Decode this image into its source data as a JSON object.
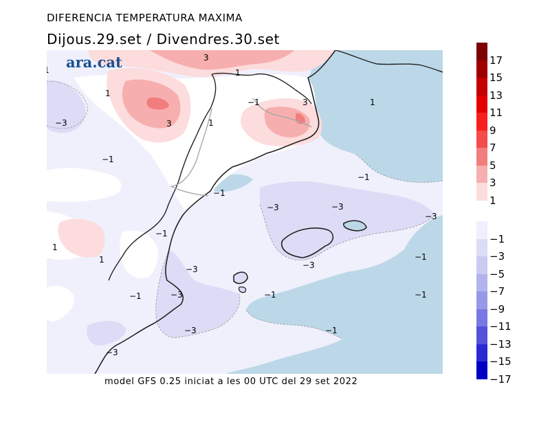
{
  "header": {
    "title": "DIFERENCIA TEMPERATURA MAXIMA",
    "subtitle": "Dijous.29.set / Divendres.30.set"
  },
  "logo_text": "ara.cat",
  "footer": "model GFS 0.25 iniciat a les 00 UTC del 29 set 2022",
  "colors": {
    "neg1": "#eff0fc",
    "neg3": "#dcdcf6",
    "neg5": "#cbcaf2",
    "pos1": "#fcdcdc",
    "pos3": "#f7aeae",
    "pos5": "#f27d7d",
    "sea_blue": "#bcd8e8",
    "coast": "#222222",
    "border": "#a8a8a8"
  },
  "map_labels": [
    {
      "id": "l1",
      "text": "1"
    },
    {
      "id": "l2",
      "text": "1"
    },
    {
      "id": "l3",
      "text": "3"
    },
    {
      "id": "l4",
      "text": "3"
    },
    {
      "id": "l5",
      "text": "1"
    },
    {
      "id": "l6",
      "text": "−1"
    },
    {
      "id": "l7",
      "text": "3"
    },
    {
      "id": "l8",
      "text": "1"
    },
    {
      "id": "l9",
      "text": "1"
    },
    {
      "id": "l10",
      "text": "−3"
    },
    {
      "id": "l11",
      "text": "−1"
    },
    {
      "id": "l12",
      "text": "−1"
    },
    {
      "id": "l13",
      "text": "−1"
    },
    {
      "id": "l14",
      "text": "−3"
    },
    {
      "id": "l15",
      "text": "−3"
    },
    {
      "id": "l16",
      "text": "−3"
    },
    {
      "id": "l17",
      "text": "−1"
    },
    {
      "id": "l18",
      "text": "1"
    },
    {
      "id": "l19",
      "text": "1"
    },
    {
      "id": "l20",
      "text": "−3"
    },
    {
      "id": "l21",
      "text": "−1"
    },
    {
      "id": "l22",
      "text": "−3"
    },
    {
      "id": "l23",
      "text": "−1"
    },
    {
      "id": "l24",
      "text": "−1"
    },
    {
      "id": "l25",
      "text": "−1"
    },
    {
      "id": "l26",
      "text": "−3"
    },
    {
      "id": "l27",
      "text": "−3"
    }
  ],
  "legend": {
    "positive": [
      {
        "label": "17",
        "color": "#7c0000"
      },
      {
        "label": "15",
        "color": "#a00000"
      },
      {
        "label": "13",
        "color": "#c40000"
      },
      {
        "label": "11",
        "color": "#e40000"
      },
      {
        "label": "9",
        "color": "#fa1f1f"
      },
      {
        "label": "7",
        "color": "#f54b4b"
      },
      {
        "label": "5",
        "color": "#f27d7d"
      },
      {
        "label": "3",
        "color": "#f7aeae"
      },
      {
        "label": "1",
        "color": "#fcdcdc"
      }
    ],
    "negative": [
      {
        "label": "−1",
        "color": "#eff0fc"
      },
      {
        "label": "−3",
        "color": "#dcdcf6"
      },
      {
        "label": "−5",
        "color": "#cbcaf2"
      },
      {
        "label": "−7",
        "color": "#b3b3ee"
      },
      {
        "label": "−9",
        "color": "#9898e8"
      },
      {
        "label": "−11",
        "color": "#7878e2"
      },
      {
        "label": "−13",
        "color": "#5252dc"
      },
      {
        "label": "−15",
        "color": "#2a2ad4"
      },
      {
        "label": "−17",
        "color": "#0000c4"
      }
    ]
  }
}
